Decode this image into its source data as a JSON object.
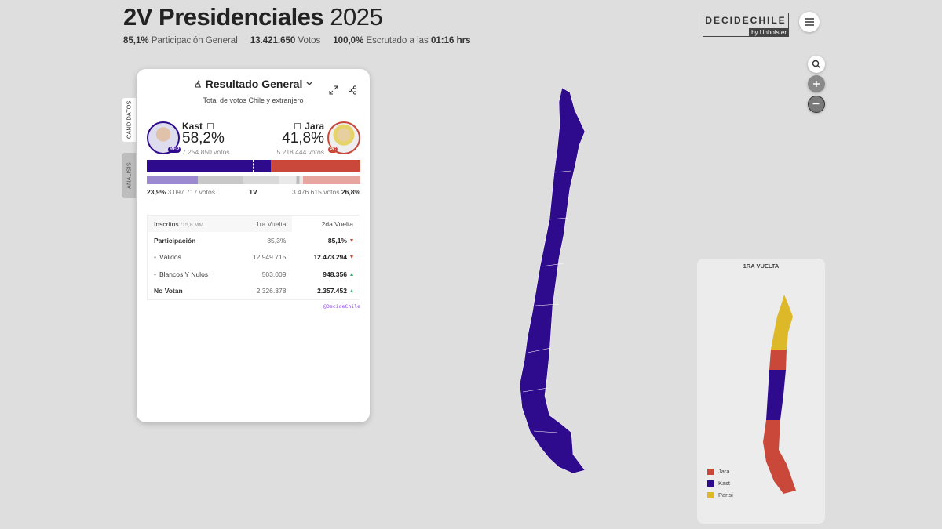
{
  "header": {
    "title": "2V Presidenciales",
    "year": "2025",
    "stats": [
      {
        "value": "85,1%",
        "label": "Participación General"
      },
      {
        "value": "13.421.650",
        "label": "Votos"
      },
      {
        "value": "100,0%",
        "label": "Escrutado a las",
        "time": "01:16 hrs"
      }
    ],
    "logo": {
      "name": "DECIDECHILE",
      "by": "by Unholster"
    }
  },
  "panel": {
    "tabs": [
      "CANDIDATOS",
      "ANÁLISIS"
    ],
    "title": "Resultado General",
    "subtitle": "Total de votos Chile y extranjero",
    "candidates": [
      {
        "name": "Kast",
        "share": "58,2%",
        "votes": "7.254.850 votos",
        "party": "REP",
        "color": "#2e0a8c",
        "first_round_share": "23,9%",
        "first_round_votes": "3.097.717 votos",
        "first_round_color": "#9c8ad0"
      },
      {
        "name": "Jara",
        "share": "41,8%",
        "votes": "5.218.444 votos",
        "party": "PC",
        "color": "#c9483a",
        "first_round_share": "26,8%",
        "first_round_votes": "3.476.615 votos",
        "first_round_color": "#e7a5a0"
      }
    ],
    "first_round_label": "1V",
    "table": {
      "header": [
        "Inscritos",
        "/15,8 MM",
        "1ra Vuelta",
        "2da Vuelta"
      ],
      "rows": [
        {
          "label": "Participación",
          "first": "85,3%",
          "second": "85,1%",
          "trend": "down"
        },
        {
          "label": "Válidos",
          "first": "12.949.715",
          "second": "12.473.294",
          "trend": "down",
          "bullet": true
        },
        {
          "label": "Blancos Y Nulos",
          "first": "503.009",
          "second": "948.356",
          "trend": "up",
          "bullet": true
        },
        {
          "label": "No Votan",
          "first": "2.326.378",
          "second": "2.357.452",
          "trend": "up"
        }
      ]
    },
    "footer": "@DecideChile"
  },
  "inset": {
    "title": "1RA VUELTA",
    "legend": [
      {
        "name": "Jara",
        "color": "#c9483a"
      },
      {
        "name": "Kast",
        "color": "#2e0a8c"
      },
      {
        "name": "Parisi",
        "color": "#ddb92a"
      }
    ]
  }
}
